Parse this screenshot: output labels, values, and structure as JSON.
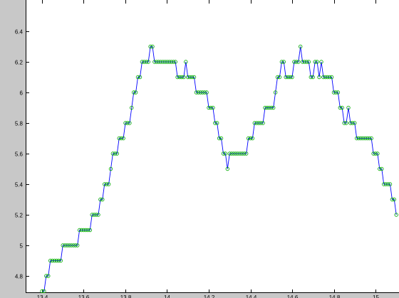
{
  "chart_data": {
    "type": "line",
    "title": "",
    "xlabel": "",
    "ylabel": "",
    "xlim": [
      13.34,
      15.1
    ],
    "ylim": [
      4.7,
      6.5
    ],
    "grid": false,
    "x_ticks": [
      13.4,
      13.6,
      13.8,
      14.0,
      14.2,
      14.4,
      14.6,
      14.8,
      15.0
    ],
    "x_tick_labels": [
      "13.4",
      "13.6",
      "13.8",
      "14",
      "14.2",
      "14.4",
      "14.6",
      "14.8",
      "15"
    ],
    "y_ticks": [
      4.8,
      5.0,
      5.2,
      5.4,
      5.6,
      5.8,
      6.0,
      6.2,
      6.4
    ],
    "y_tick_labels": [
      "4.8",
      "5",
      "5.2",
      "5.4",
      "5.6",
      "5.8",
      "6",
      "6.2",
      "6.4"
    ],
    "colors": {
      "line": "#0000ff",
      "marker": "#00aa00",
      "axes_bg": "#ffffff",
      "figure_bg": "#c8c8c8"
    },
    "series": [
      {
        "line_style": "solid",
        "marker": "circle",
        "points": [
          [
            13.4,
            4.7
          ],
          [
            13.41,
            4.7
          ],
          [
            13.42,
            4.8
          ],
          [
            13.43,
            4.8
          ],
          [
            13.44,
            4.9
          ],
          [
            13.45,
            4.9
          ],
          [
            13.46,
            4.9
          ],
          [
            13.47,
            4.9
          ],
          [
            13.48,
            4.9
          ],
          [
            13.49,
            4.9
          ],
          [
            13.5,
            5.0
          ],
          [
            13.51,
            5.0
          ],
          [
            13.52,
            5.0
          ],
          [
            13.53,
            5.0
          ],
          [
            13.54,
            5.0
          ],
          [
            13.55,
            5.0
          ],
          [
            13.56,
            5.0
          ],
          [
            13.57,
            5.0
          ],
          [
            13.58,
            5.1
          ],
          [
            13.59,
            5.1
          ],
          [
            13.6,
            5.1
          ],
          [
            13.61,
            5.1
          ],
          [
            13.62,
            5.1
          ],
          [
            13.63,
            5.1
          ],
          [
            13.64,
            5.2
          ],
          [
            13.65,
            5.2
          ],
          [
            13.66,
            5.2
          ],
          [
            13.67,
            5.2
          ],
          [
            13.68,
            5.3
          ],
          [
            13.69,
            5.3
          ],
          [
            13.7,
            5.4
          ],
          [
            13.71,
            5.4
          ],
          [
            13.72,
            5.4
          ],
          [
            13.73,
            5.5
          ],
          [
            13.74,
            5.6
          ],
          [
            13.75,
            5.6
          ],
          [
            13.76,
            5.6
          ],
          [
            13.77,
            5.7
          ],
          [
            13.78,
            5.7
          ],
          [
            13.79,
            5.7
          ],
          [
            13.8,
            5.8
          ],
          [
            13.81,
            5.8
          ],
          [
            13.82,
            5.8
          ],
          [
            13.83,
            5.9
          ],
          [
            13.84,
            6.0
          ],
          [
            13.85,
            6.0
          ],
          [
            13.86,
            6.1
          ],
          [
            13.87,
            6.1
          ],
          [
            13.88,
            6.2
          ],
          [
            13.89,
            6.2
          ],
          [
            13.9,
            6.2
          ],
          [
            13.91,
            6.2
          ],
          [
            13.92,
            6.3
          ],
          [
            13.93,
            6.3
          ],
          [
            13.94,
            6.2
          ],
          [
            13.95,
            6.2
          ],
          [
            13.96,
            6.2
          ],
          [
            13.97,
            6.2
          ],
          [
            13.98,
            6.2
          ],
          [
            13.99,
            6.2
          ],
          [
            14.0,
            6.2
          ],
          [
            14.01,
            6.2
          ],
          [
            14.02,
            6.2
          ],
          [
            14.03,
            6.2
          ],
          [
            14.04,
            6.2
          ],
          [
            14.05,
            6.1
          ],
          [
            14.06,
            6.1
          ],
          [
            14.07,
            6.1
          ],
          [
            14.08,
            6.1
          ],
          [
            14.09,
            6.2
          ],
          [
            14.1,
            6.1
          ],
          [
            14.11,
            6.1
          ],
          [
            14.12,
            6.1
          ],
          [
            14.13,
            6.1
          ],
          [
            14.14,
            6.0
          ],
          [
            14.15,
            6.0
          ],
          [
            14.16,
            6.0
          ],
          [
            14.17,
            6.0
          ],
          [
            14.18,
            6.0
          ],
          [
            14.19,
            6.0
          ],
          [
            14.2,
            5.9
          ],
          [
            14.21,
            5.9
          ],
          [
            14.22,
            5.9
          ],
          [
            14.23,
            5.8
          ],
          [
            14.24,
            5.8
          ],
          [
            14.25,
            5.7
          ],
          [
            14.26,
            5.7
          ],
          [
            14.27,
            5.6
          ],
          [
            14.28,
            5.6
          ],
          [
            14.29,
            5.5
          ],
          [
            14.3,
            5.6
          ],
          [
            14.31,
            5.6
          ],
          [
            14.32,
            5.6
          ],
          [
            14.33,
            5.6
          ],
          [
            14.34,
            5.6
          ],
          [
            14.35,
            5.6
          ],
          [
            14.36,
            5.6
          ],
          [
            14.37,
            5.6
          ],
          [
            14.38,
            5.6
          ],
          [
            14.39,
            5.7
          ],
          [
            14.4,
            5.7
          ],
          [
            14.41,
            5.7
          ],
          [
            14.42,
            5.8
          ],
          [
            14.43,
            5.8
          ],
          [
            14.44,
            5.8
          ],
          [
            14.45,
            5.8
          ],
          [
            14.46,
            5.8
          ],
          [
            14.47,
            5.9
          ],
          [
            14.48,
            5.9
          ],
          [
            14.49,
            5.9
          ],
          [
            14.5,
            5.9
          ],
          [
            14.51,
            5.9
          ],
          [
            14.52,
            6.0
          ],
          [
            14.53,
            6.1
          ],
          [
            14.54,
            6.1
          ],
          [
            14.55,
            6.2
          ],
          [
            14.56,
            6.2
          ],
          [
            14.57,
            6.1
          ],
          [
            14.58,
            6.1
          ],
          [
            14.59,
            6.1
          ],
          [
            14.6,
            6.1
          ],
          [
            14.61,
            6.2
          ],
          [
            14.62,
            6.2
          ],
          [
            14.63,
            6.2
          ],
          [
            14.64,
            6.3
          ],
          [
            14.65,
            6.2
          ],
          [
            14.66,
            6.2
          ],
          [
            14.67,
            6.2
          ],
          [
            14.68,
            6.2
          ],
          [
            14.69,
            6.1
          ],
          [
            14.7,
            6.1
          ],
          [
            14.71,
            6.2
          ],
          [
            14.72,
            6.2
          ],
          [
            14.73,
            6.1
          ],
          [
            14.74,
            6.2
          ],
          [
            14.75,
            6.1
          ],
          [
            14.76,
            6.1
          ],
          [
            14.77,
            6.1
          ],
          [
            14.78,
            6.1
          ],
          [
            14.79,
            6.1
          ],
          [
            14.8,
            6.0
          ],
          [
            14.81,
            6.0
          ],
          [
            14.82,
            6.0
          ],
          [
            14.83,
            5.9
          ],
          [
            14.84,
            5.9
          ],
          [
            14.85,
            5.8
          ],
          [
            14.86,
            5.8
          ],
          [
            14.87,
            5.9
          ],
          [
            14.88,
            5.8
          ],
          [
            14.89,
            5.8
          ],
          [
            14.9,
            5.8
          ],
          [
            14.91,
            5.7
          ],
          [
            14.92,
            5.7
          ],
          [
            14.93,
            5.7
          ],
          [
            14.94,
            5.7
          ],
          [
            14.95,
            5.7
          ],
          [
            14.96,
            5.7
          ],
          [
            14.97,
            5.7
          ],
          [
            14.98,
            5.7
          ],
          [
            14.99,
            5.6
          ],
          [
            15.0,
            5.6
          ],
          [
            15.01,
            5.6
          ],
          [
            15.02,
            5.5
          ],
          [
            15.03,
            5.5
          ],
          [
            15.04,
            5.4
          ],
          [
            15.05,
            5.4
          ],
          [
            15.06,
            5.4
          ],
          [
            15.07,
            5.4
          ],
          [
            15.08,
            5.3
          ],
          [
            15.09,
            5.3
          ],
          [
            15.1,
            5.2
          ]
        ]
      }
    ]
  }
}
